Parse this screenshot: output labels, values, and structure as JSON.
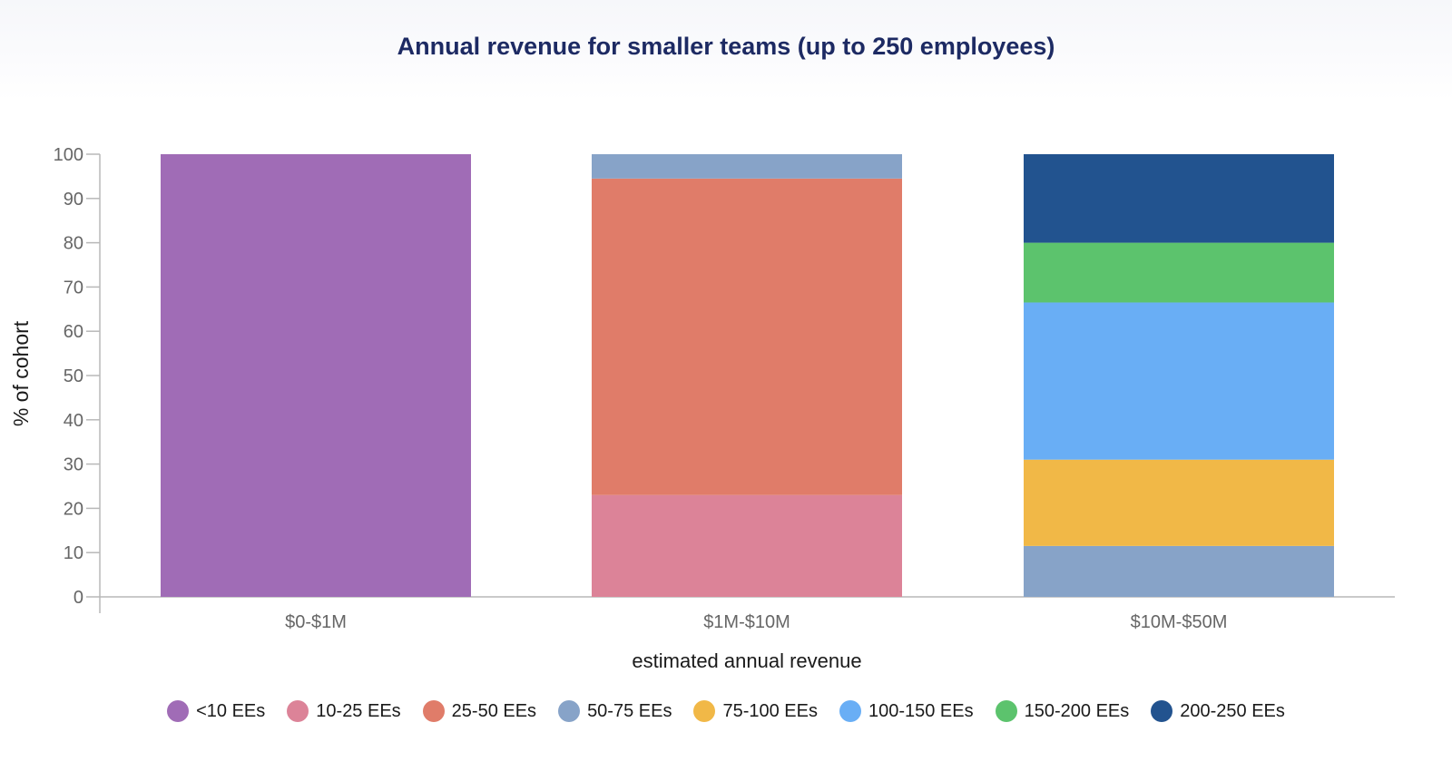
{
  "chart_data": {
    "type": "bar",
    "stacked": true,
    "title": "Annual revenue for smaller teams (up to 250 employees)",
    "xlabel": "estimated annual revenue",
    "ylabel": "% of cohort",
    "ylim": [
      0,
      100
    ],
    "yticks": [
      0,
      10,
      20,
      30,
      40,
      50,
      60,
      70,
      80,
      90,
      100
    ],
    "categories": [
      "$0-$1M",
      "$1M-$10M",
      "$10M-$50M"
    ],
    "legend_position": "bottom",
    "grid": false,
    "series": [
      {
        "name": "<10 EEs",
        "color": "#a06cb6",
        "values": [
          100,
          0,
          0
        ]
      },
      {
        "name": "10-25 EEs",
        "color": "#dc8398",
        "values": [
          0,
          23,
          0
        ]
      },
      {
        "name": "25-50 EEs",
        "color": "#e07c69",
        "values": [
          0,
          71.5,
          0
        ]
      },
      {
        "name": "50-75 EEs",
        "color": "#87a3c8",
        "values": [
          0,
          5.5,
          11.5
        ]
      },
      {
        "name": "75-100 EEs",
        "color": "#f1b847",
        "values": [
          0,
          0,
          19.5
        ]
      },
      {
        "name": "100-150 EEs",
        "color": "#69aef5",
        "values": [
          0,
          0,
          35.5
        ]
      },
      {
        "name": "150-200 EEs",
        "color": "#5cc36d",
        "values": [
          0,
          0,
          13.5
        ]
      },
      {
        "name": "200-250 EEs",
        "color": "#22538f",
        "values": [
          0,
          0,
          20
        ]
      }
    ]
  }
}
